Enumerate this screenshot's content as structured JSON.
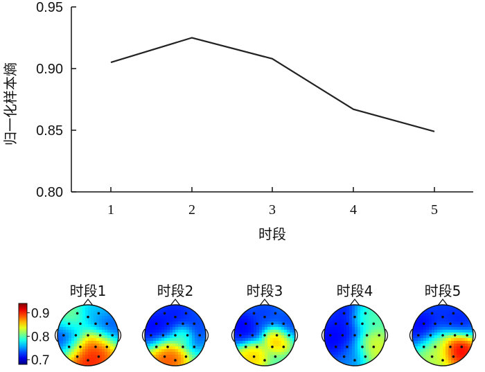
{
  "chart_data": [
    {
      "type": "line",
      "xlabel": "时段",
      "ylabel": "归一化样本熵",
      "categories": [
        "1",
        "2",
        "3",
        "4",
        "5"
      ],
      "values": [
        0.905,
        0.925,
        0.908,
        0.867,
        0.849
      ],
      "ylim": [
        0.8,
        0.95
      ],
      "yticks": [
        "0.80",
        "0.85",
        "0.90",
        "0.95"
      ],
      "grid": false,
      "line_color": "#222222"
    },
    {
      "type": "heatmap",
      "description_kind": "scalp-topography",
      "panels": [
        {
          "title": "时段1",
          "hot": [
            {
              "x": -0.1,
              "y": 0.65,
              "v": 0.92,
              "r": 0.45
            },
            {
              "x": 0.35,
              "y": 0.35,
              "v": 0.9,
              "r": 0.3
            },
            {
              "x": -0.6,
              "y": -0.5,
              "v": 0.82,
              "r": 0.3
            }
          ],
          "cold": [
            {
              "x": -0.7,
              "y": 0.1,
              "v": 0.7,
              "r": 0.4
            },
            {
              "x": 0.6,
              "y": -0.2,
              "v": 0.72,
              "r": 0.35
            },
            {
              "x": 0.2,
              "y": -0.7,
              "v": 0.76,
              "r": 0.3
            }
          ]
        },
        {
          "title": "时段2",
          "hot": [
            {
              "x": -0.3,
              "y": 0.7,
              "v": 0.9,
              "r": 0.35
            },
            {
              "x": 0.25,
              "y": 0.0,
              "v": 0.82,
              "r": 0.2
            }
          ],
          "cold": [
            {
              "x": -0.7,
              "y": -0.2,
              "v": 0.7,
              "r": 0.4
            },
            {
              "x": 0.6,
              "y": -0.3,
              "v": 0.72,
              "r": 0.4
            },
            {
              "x": 0.0,
              "y": -0.75,
              "v": 0.71,
              "r": 0.35
            }
          ]
        },
        {
          "title": "时段3",
          "hot": [
            {
              "x": -0.45,
              "y": 0.7,
              "v": 0.86,
              "r": 0.25
            },
            {
              "x": 0.45,
              "y": 0.1,
              "v": 0.87,
              "r": 0.22
            }
          ],
          "cold": [
            {
              "x": -0.75,
              "y": -0.3,
              "v": 0.7,
              "r": 0.35
            },
            {
              "x": 0.75,
              "y": -0.4,
              "v": 0.72,
              "r": 0.3
            },
            {
              "x": 0.0,
              "y": -0.8,
              "v": 0.72,
              "r": 0.3
            }
          ]
        },
        {
          "title": "时段4",
          "hot": [
            {
              "x": 0.55,
              "y": 0.5,
              "v": 0.84,
              "r": 0.3
            },
            {
              "x": 0.3,
              "y": -0.6,
              "v": 0.8,
              "r": 0.25
            }
          ],
          "cold": [
            {
              "x": -0.7,
              "y": 0.1,
              "v": 0.7,
              "r": 0.45
            },
            {
              "x": -0.3,
              "y": -0.7,
              "v": 0.71,
              "r": 0.35
            },
            {
              "x": 0.0,
              "y": 0.7,
              "v": 0.74,
              "r": 0.3
            }
          ]
        },
        {
          "title": "时段5",
          "hot": [
            {
              "x": 0.5,
              "y": 0.45,
              "v": 0.93,
              "r": 0.3
            },
            {
              "x": -0.2,
              "y": 0.5,
              "v": 0.83,
              "r": 0.35
            }
          ],
          "cold": [
            {
              "x": -0.7,
              "y": -0.3,
              "v": 0.7,
              "r": 0.4
            },
            {
              "x": 0.55,
              "y": -0.5,
              "v": 0.71,
              "r": 0.35
            },
            {
              "x": 0.0,
              "y": -0.85,
              "v": 0.72,
              "r": 0.3
            }
          ]
        }
      ],
      "colorbar": {
        "ticks": [
          "0.9",
          "0.8",
          "0.7"
        ],
        "range": [
          0.68,
          0.94
        ]
      }
    }
  ]
}
